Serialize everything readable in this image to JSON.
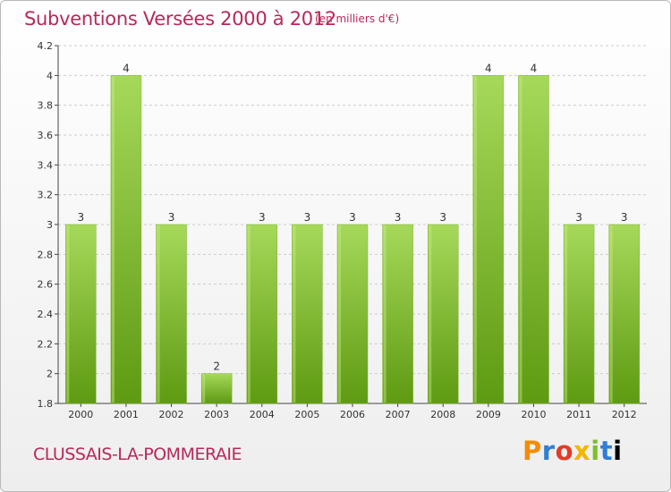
{
  "header": {
    "title": "Subventions Versées 2000 à 2012",
    "subtitle": "(en milliers d'€)"
  },
  "footer": {
    "commune": "CLUSSAIS-LA-POMMERAIE",
    "brand_letters": [
      "P",
      "r",
      "o",
      "x",
      "i",
      "t",
      "i"
    ]
  },
  "colors": {
    "title": "#b8285a",
    "bar_light": "#a6d95a",
    "bar_dark": "#5e9a12",
    "grid": "#cccccc"
  },
  "chart_data": {
    "type": "bar",
    "title": "Subventions Versées 2000 à 2012",
    "subtitle": "(en milliers d'€)",
    "xlabel": "",
    "ylabel": "",
    "categories": [
      "2000",
      "2001",
      "2002",
      "2003",
      "2004",
      "2005",
      "2006",
      "2007",
      "2008",
      "2009",
      "2010",
      "2011",
      "2012"
    ],
    "values": [
      3,
      4,
      3,
      2,
      3,
      3,
      3,
      3,
      3,
      4,
      4,
      3,
      3
    ],
    "data_labels": [
      "3",
      "4",
      "3",
      "2",
      "3",
      "3",
      "3",
      "3",
      "3",
      "4",
      "4",
      "3",
      "3"
    ],
    "ylim": [
      1.8,
      4.2
    ],
    "yticks": [
      "1.8",
      "2",
      "2.2",
      "2.4",
      "2.6",
      "2.8",
      "3",
      "3.2",
      "3.4",
      "3.6",
      "3.8",
      "4",
      "4.2"
    ],
    "grid": "horizontal dashed",
    "legend": "none"
  }
}
